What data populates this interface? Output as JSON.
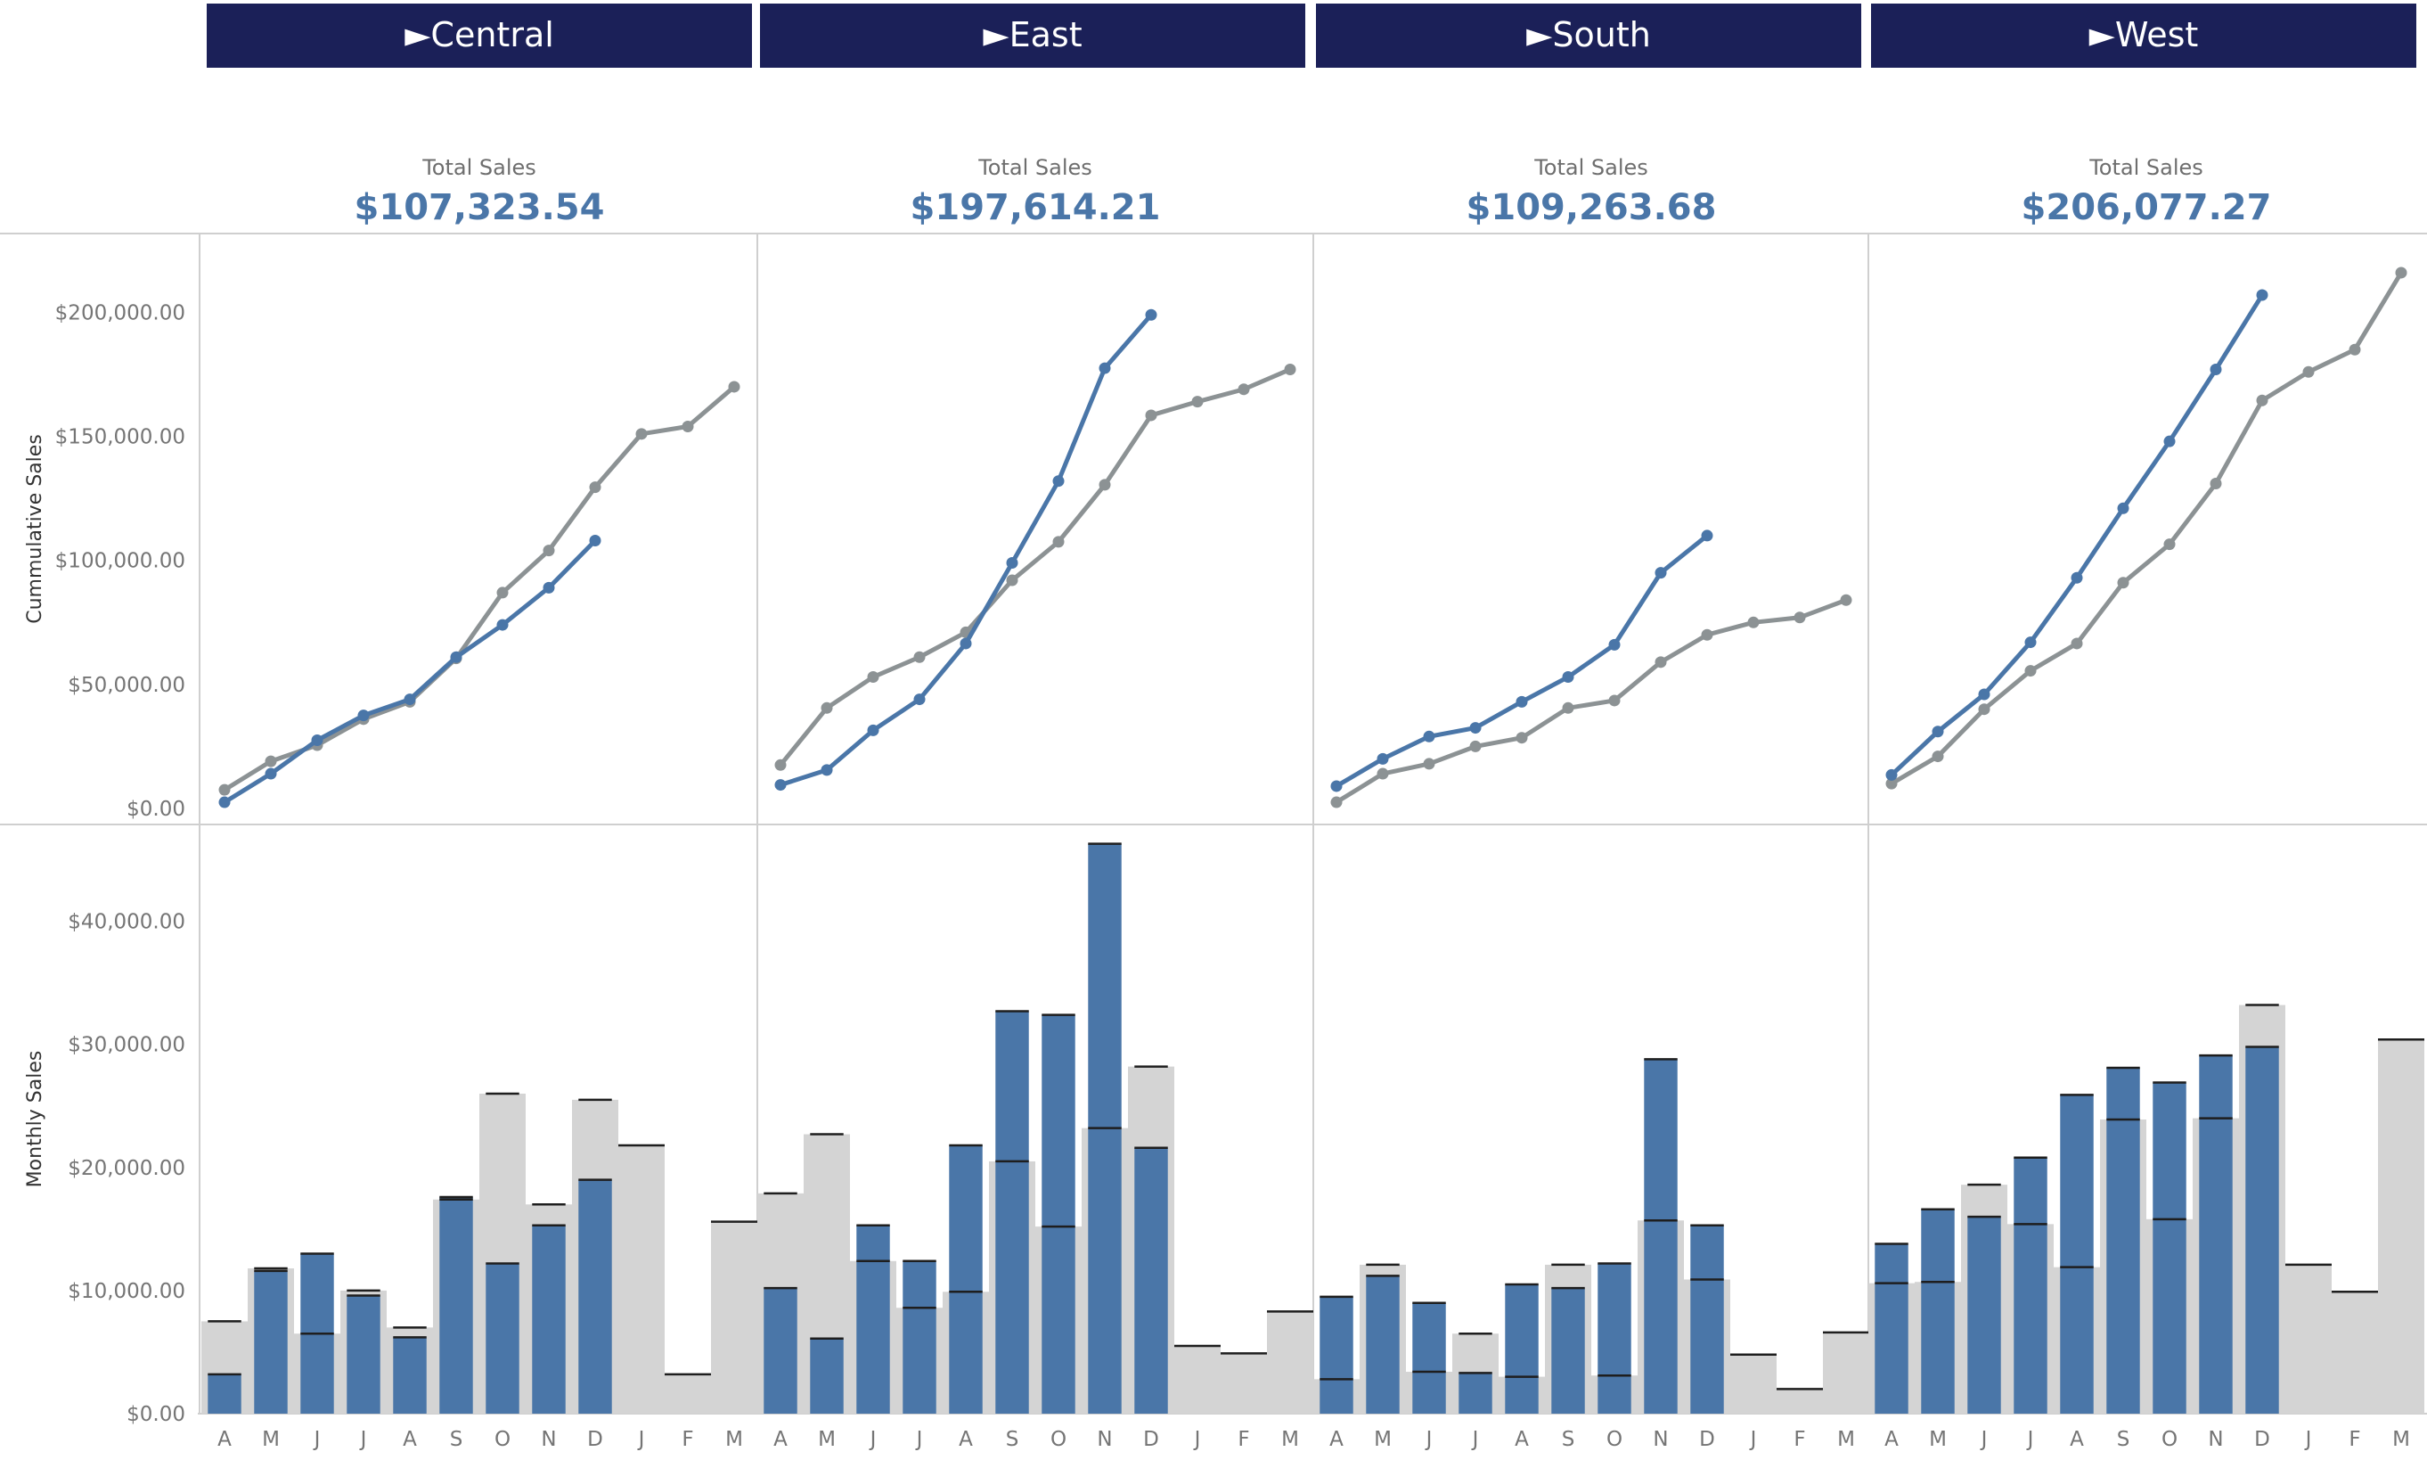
{
  "colors": {
    "header_bg": "#1b2058",
    "header_text": "#ffffff",
    "current_year": "#4a76a8",
    "prior_year": "#8c9294",
    "prior_bar": "#d4d4d4",
    "kpi_value": "#4a76a8",
    "kpi_label": "#6e6e6e",
    "axis_text": "#757575",
    "grid_border": "#cfcfcf"
  },
  "regions": [
    {
      "label": "►Central",
      "kpi_label": "Total Sales",
      "kpi_value": "$107,323.54"
    },
    {
      "label": "►East",
      "kpi_label": "Total Sales",
      "kpi_value": "$197,614.21"
    },
    {
      "label": "►South",
      "kpi_label": "Total Sales",
      "kpi_value": "$109,263.68"
    },
    {
      "label": "►West",
      "kpi_label": "Total Sales",
      "kpi_value": "$206,077.27"
    }
  ],
  "chart_data": [
    {
      "type": "line",
      "ylabel": "Cummulative Sales",
      "ylim": [
        0,
        230000
      ],
      "yticks": [
        "$0.00",
        "$50,000.00",
        "$100,000.00",
        "$150,000.00",
        "$200,000.00"
      ],
      "ytick_values": [
        0,
        50000,
        100000,
        150000,
        200000
      ],
      "x": [
        "A",
        "M",
        "J",
        "J",
        "A",
        "S",
        "O",
        "N",
        "D",
        "J",
        "F",
        "M"
      ],
      "panels": [
        {
          "region": "Central",
          "series": [
            {
              "values": [
                2500,
                14000,
                27500,
                37500,
                44000,
                61000,
                74000,
                89000,
                108000
              ]
            },
            {
              "values": [
                7500,
                19000,
                25500,
                36000,
                43000,
                60500,
                87000,
                104000,
                129500,
                151000,
                154000,
                170000
              ]
            }
          ]
        },
        {
          "region": "East",
          "series": [
            {
              "values": [
                9500,
                15500,
                31500,
                44000,
                66500,
                99000,
                132000,
                177500,
                199000
              ]
            },
            {
              "values": [
                17500,
                40500,
                53000,
                61000,
                71000,
                92000,
                107500,
                130500,
                158500,
                164000,
                169000,
                177000
              ]
            }
          ]
        },
        {
          "region": "South",
          "series": [
            {
              "values": [
                9000,
                20000,
                29000,
                32500,
                43000,
                53000,
                66000,
                95000,
                110000
              ]
            },
            {
              "values": [
                2500,
                14000,
                18000,
                25000,
                28500,
                40500,
                43500,
                59000,
                70000,
                75000,
                77000,
                84000
              ]
            }
          ]
        },
        {
          "region": "West",
          "series": [
            {
              "values": [
                13500,
                31000,
                46000,
                67000,
                93000,
                121000,
                148000,
                177000,
                207000
              ]
            },
            {
              "values": [
                10000,
                21000,
                40000,
                55500,
                66500,
                91000,
                106500,
                131000,
                164500,
                176000,
                185000,
                216000
              ]
            }
          ]
        }
      ]
    },
    {
      "type": "bar",
      "ylabel": "Monthly Sales",
      "ylim": [
        0,
        47000
      ],
      "yticks": [
        "$0.00",
        "$10,000.00",
        "$20,000.00",
        "$30,000.00",
        "$40,000.00"
      ],
      "ytick_values": [
        0,
        10000,
        20000,
        30000,
        40000
      ],
      "x": [
        "A",
        "M",
        "J",
        "J",
        "A",
        "S",
        "O",
        "N",
        "D",
        "J",
        "F",
        "M"
      ],
      "panels": [
        {
          "region": "Central",
          "series": [
            {
              "values": [
                3200,
                11600,
                13000,
                9600,
                6200,
                17600,
                12200,
                15300,
                19000
              ]
            },
            {
              "values": [
                7500,
                11800,
                6500,
                10000,
                7000,
                17400,
                26000,
                17000,
                25500,
                21800,
                3200,
                15600
              ]
            }
          ]
        },
        {
          "region": "East",
          "series": [
            {
              "values": [
                10200,
                6100,
                15300,
                12400,
                21800,
                32700,
                32400,
                46300,
                21600
              ]
            },
            {
              "values": [
                17900,
                22700,
                12400,
                8600,
                9900,
                20500,
                15200,
                23200,
                28200,
                5500,
                4900,
                8300
              ]
            }
          ]
        },
        {
          "region": "South",
          "series": [
            {
              "values": [
                9500,
                11200,
                9000,
                3300,
                10500,
                10200,
                12200,
                28800,
                15300
              ]
            },
            {
              "values": [
                2800,
                12100,
                3400,
                6500,
                3000,
                12100,
                3100,
                15700,
                10900,
                4800,
                2000,
                6600
              ]
            }
          ]
        },
        {
          "region": "West",
          "series": [
            {
              "values": [
                13800,
                16600,
                16000,
                20800,
                25900,
                28100,
                26900,
                29100,
                29800
              ]
            },
            {
              "values": [
                10600,
                10700,
                18600,
                15400,
                11900,
                23900,
                15800,
                24000,
                33200,
                12100,
                9900,
                30400
              ]
            }
          ]
        }
      ]
    }
  ]
}
